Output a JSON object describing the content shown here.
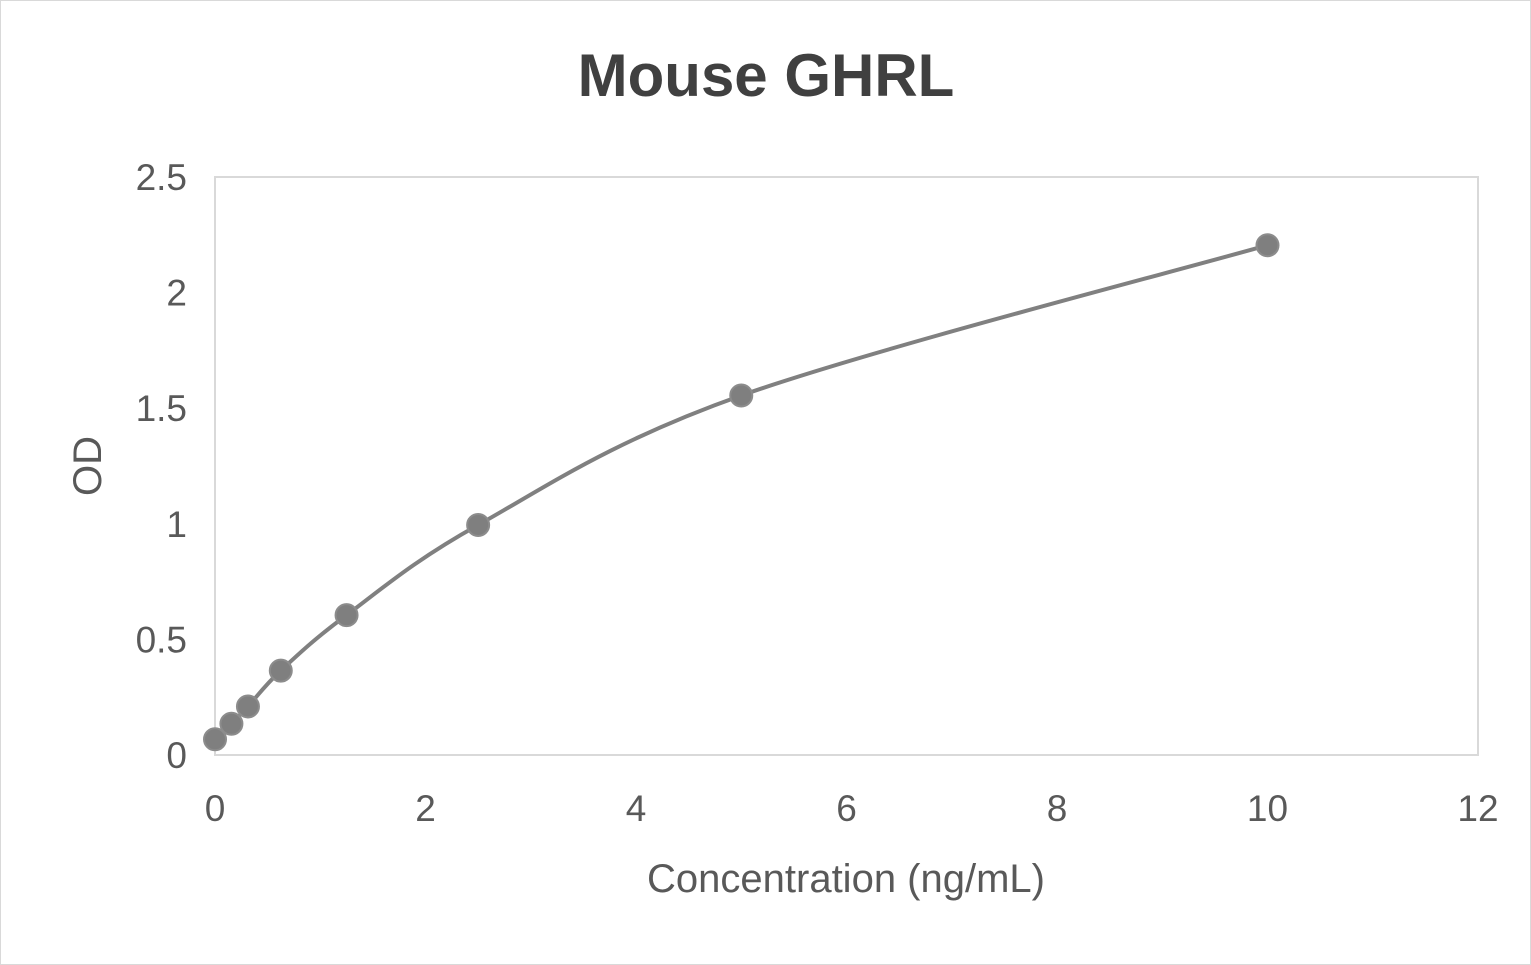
{
  "chart_data": {
    "type": "scatter",
    "title": "Mouse GHRL",
    "xlabel": "Concentration (ng/mL)",
    "ylabel": "OD",
    "xlim": [
      0,
      12
    ],
    "ylim": [
      0,
      2.5
    ],
    "x_ticks": [
      "0",
      "2",
      "4",
      "6",
      "8",
      "10",
      "12"
    ],
    "y_ticks": [
      "0",
      "0.5",
      "1",
      "1.5",
      "2",
      "2.5"
    ],
    "grid": false,
    "legend": "none",
    "smooth_line": true,
    "series": [
      {
        "x": [
          0,
          0.156,
          0.313,
          0.625,
          1.25,
          2.5,
          5,
          10
        ],
        "y": [
          0.068,
          0.135,
          0.21,
          0.365,
          0.605,
          0.995,
          1.555,
          2.205
        ],
        "color": "#808080",
        "marker_color": "#7f7f7f"
      }
    ]
  }
}
